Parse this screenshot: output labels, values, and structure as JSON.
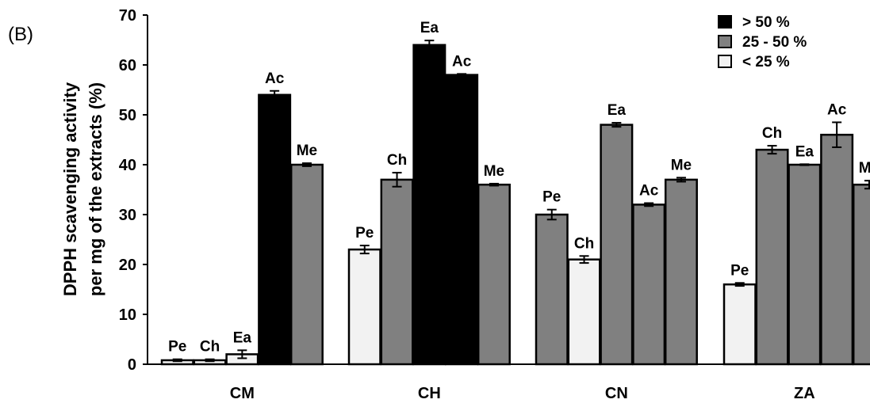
{
  "panel_label": "(B)",
  "chart_data": {
    "type": "bar",
    "ylabel_lines": [
      "DPPH scavenging activity",
      "per mg of the extracts (%)"
    ],
    "ylim": [
      0,
      70
    ],
    "yticks": [
      0,
      10,
      20,
      30,
      40,
      50,
      60,
      70
    ],
    "grid": false,
    "legend_position": "top-right",
    "legend": [
      {
        "label": "> 50 %",
        "class": "high"
      },
      {
        "label": "25 - 50 %",
        "class": "mid"
      },
      {
        "label": "< 25 %",
        "class": "low"
      }
    ],
    "class_colors": {
      "high": "#000000",
      "mid": "#808080",
      "low": "#f2f2f2"
    },
    "groups": [
      {
        "name": "CM",
        "bars": [
          {
            "label": "Pe",
            "value": 0.8,
            "err": 0.2,
            "class": "low"
          },
          {
            "label": "Ch",
            "value": 0.8,
            "err": 0.2,
            "class": "low"
          },
          {
            "label": "Ea",
            "value": 2.0,
            "err": 0.8,
            "class": "low"
          },
          {
            "label": "Ac",
            "value": 54.0,
            "err": 0.8,
            "class": "high"
          },
          {
            "label": "Me",
            "value": 40.0,
            "err": 0.3,
            "class": "mid"
          }
        ]
      },
      {
        "name": "CH",
        "bars": [
          {
            "label": "Pe",
            "value": 23.0,
            "err": 0.8,
            "class": "low"
          },
          {
            "label": "Ch",
            "value": 37.0,
            "err": 1.4,
            "class": "mid"
          },
          {
            "label": "Ea",
            "value": 64.0,
            "err": 0.9,
            "class": "high"
          },
          {
            "label": "Ac",
            "value": 58.0,
            "err": 0.2,
            "class": "high"
          },
          {
            "label": "Me",
            "value": 36.0,
            "err": 0.2,
            "class": "mid"
          }
        ]
      },
      {
        "name": "CN",
        "bars": [
          {
            "label": "Pe",
            "value": 30.0,
            "err": 1.0,
            "class": "mid"
          },
          {
            "label": "Ch",
            "value": 21.0,
            "err": 0.7,
            "class": "low"
          },
          {
            "label": "Ea",
            "value": 48.0,
            "err": 0.4,
            "class": "mid"
          },
          {
            "label": "Ac",
            "value": 32.0,
            "err": 0.3,
            "class": "mid"
          },
          {
            "label": "Me",
            "value": 37.0,
            "err": 0.4,
            "class": "mid"
          }
        ]
      },
      {
        "name": "ZA",
        "bars": [
          {
            "label": "Pe",
            "value": 16.0,
            "err": 0.3,
            "class": "low"
          },
          {
            "label": "Ch",
            "value": 43.0,
            "err": 0.8,
            "class": "mid"
          },
          {
            "label": "Ea",
            "value": 40.0,
            "err": 0.1,
            "class": "mid"
          },
          {
            "label": "Ac",
            "value": 46.0,
            "err": 2.5,
            "class": "mid"
          },
          {
            "label": "Me",
            "value": 36.0,
            "err": 0.8,
            "class": "mid"
          }
        ]
      }
    ]
  }
}
